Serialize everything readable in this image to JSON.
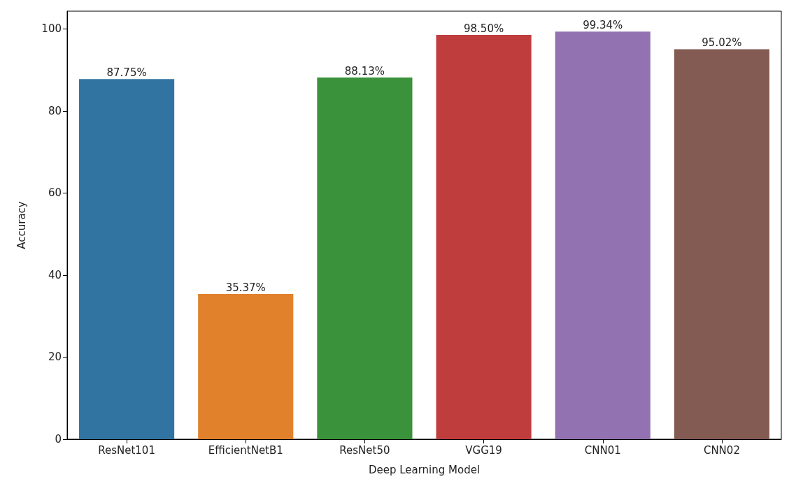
{
  "chart_data": {
    "type": "bar",
    "xlabel": "Deep Learning Model",
    "ylabel": "Accuracy",
    "categories": [
      "ResNet101",
      "EfficientNetB1",
      "ResNet50",
      "VGG19",
      "CNN01",
      "CNN02"
    ],
    "values": [
      87.75,
      35.37,
      88.13,
      98.5,
      99.34,
      95.02
    ],
    "colors": [
      "#3274a1",
      "#e1812c",
      "#3a923a",
      "#c03d3e",
      "#9372b2",
      "#845b53"
    ],
    "value_labels": [
      "87.75%",
      "35.37%",
      "88.13%",
      "98.50%",
      "99.34%",
      "95.02%"
    ],
    "ylim": [
      0,
      104.3
    ],
    "yticks": [
      0,
      20,
      40,
      60,
      80,
      100
    ],
    "grid": false
  }
}
